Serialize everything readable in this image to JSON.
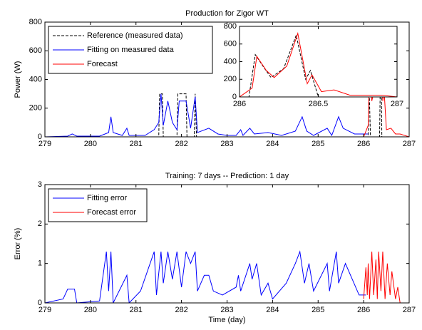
{
  "chart_data": [
    {
      "type": "line",
      "title": "Production for Zigor WT",
      "ylabel": "Power (W)",
      "xlim": [
        279,
        287
      ],
      "xticks": [
        279,
        280,
        281,
        282,
        283,
        284,
        285,
        286,
        287
      ],
      "ylim": [
        0,
        800
      ],
      "yticks": [
        0,
        200,
        400,
        600,
        800
      ],
      "legend": "upper left",
      "series": [
        {
          "name": "Reference (measured data)",
          "color": "#000000",
          "linestyle": "--",
          "x": [
            279,
            281.5,
            281.52,
            281.58,
            281.6,
            281.9,
            281.92,
            282.1,
            282.12,
            282.28,
            282.3,
            282.33,
            286.1,
            286.12,
            286.15,
            286.35,
            286.38,
            286.4,
            287
          ],
          "values": [
            0,
            0,
            300,
            300,
            0,
            0,
            300,
            300,
            0,
            0,
            300,
            0,
            0,
            350,
            0,
            0,
            700,
            0,
            0
          ]
        },
        {
          "name": "Fitting on measured data",
          "color": "#0000ff",
          "linestyle": "-",
          "x": [
            279,
            279.5,
            279.6,
            279.7,
            280.2,
            280.4,
            280.45,
            280.5,
            280.7,
            280.8,
            280.85,
            281.2,
            281.4,
            281.5,
            281.55,
            281.6,
            281.7,
            281.8,
            281.9,
            281.95,
            282.1,
            282.2,
            282.3,
            282.35,
            282.6,
            282.8,
            283.0,
            283.2,
            283.3,
            283.35,
            283.5,
            283.6,
            283.9,
            284.2,
            284.5,
            284.65,
            284.75,
            284.9,
            285.2,
            285.3,
            285.45,
            285.55,
            285.8,
            286.1
          ],
          "values": [
            0,
            5,
            20,
            5,
            5,
            30,
            140,
            30,
            10,
            60,
            10,
            10,
            50,
            100,
            300,
            80,
            250,
            100,
            50,
            250,
            250,
            60,
            280,
            30,
            60,
            20,
            10,
            10,
            50,
            10,
            60,
            20,
            30,
            10,
            40,
            140,
            40,
            10,
            60,
            10,
            140,
            60,
            20,
            20
          ]
        },
        {
          "name": "Forecast",
          "color": "#ff0000",
          "linestyle": "-",
          "x": [
            286,
            286.1,
            286.13,
            286.18,
            286.25,
            286.35,
            286.42,
            286.45,
            286.5,
            286.6,
            286.7,
            286.8,
            287
          ],
          "values": [
            0,
            80,
            480,
            250,
            350,
            720,
            250,
            320,
            50,
            60,
            20,
            20,
            0
          ]
        }
      ]
    },
    {
      "type": "line",
      "xlim": [
        286,
        287
      ],
      "xticks": [
        286,
        286.5,
        287
      ],
      "ylim": [
        0,
        800
      ],
      "yticks": [
        0,
        200,
        400,
        600,
        800
      ],
      "series": [
        {
          "color": "#000000",
          "linestyle": "--",
          "x": [
            286,
            286.06,
            286.1,
            286.16,
            286.2,
            286.28,
            286.36,
            286.42,
            286.45,
            286.5,
            287
          ],
          "values": [
            0,
            0,
            480,
            320,
            220,
            320,
            700,
            200,
            300,
            0,
            0
          ]
        },
        {
          "color": "#ff0000",
          "linestyle": "-",
          "x": [
            286,
            286.08,
            286.11,
            286.17,
            286.22,
            286.3,
            286.37,
            286.43,
            286.46,
            286.52,
            286.6,
            286.7,
            286.9,
            287
          ],
          "values": [
            0,
            100,
            460,
            300,
            220,
            350,
            720,
            150,
            250,
            60,
            80,
            20,
            20,
            0
          ]
        }
      ]
    },
    {
      "type": "line",
      "title": "Training: 7 days -- Prediction: 1 day",
      "xlabel": "Time (day)",
      "ylabel": "Error (%)",
      "xlim": [
        279,
        287
      ],
      "xticks": [
        279,
        280,
        281,
        282,
        283,
        284,
        285,
        286,
        287
      ],
      "ylim": [
        0,
        3
      ],
      "yticks": [
        0,
        1,
        2,
        3
      ],
      "legend": "upper left",
      "series": [
        {
          "name": "Fitting error",
          "color": "#0000ff",
          "linestyle": "-",
          "x": [
            279,
            279.4,
            279.5,
            279.65,
            279.7,
            280.2,
            280.35,
            280.4,
            280.45,
            280.5,
            280.8,
            280.85,
            281.1,
            281.4,
            281.45,
            281.55,
            281.6,
            281.7,
            281.8,
            281.9,
            282.0,
            282.1,
            282.2,
            282.3,
            282.35,
            282.5,
            282.6,
            282.7,
            282.9,
            283.2,
            283.25,
            283.3,
            283.5,
            283.55,
            283.65,
            283.75,
            283.9,
            284.0,
            284.3,
            284.5,
            284.6,
            284.7,
            284.8,
            284.9,
            285.2,
            285.25,
            285.4,
            285.45,
            285.6,
            285.9,
            286.05
          ],
          "values": [
            0,
            0.1,
            0.35,
            0.35,
            0,
            0.05,
            1.3,
            0.3,
            1.3,
            0,
            0.7,
            0,
            0.3,
            1.3,
            0.2,
            1.3,
            0.5,
            1.3,
            0.6,
            1.3,
            0.4,
            1.3,
            1.0,
            1.3,
            0.3,
            0.7,
            0.7,
            0.3,
            0.2,
            0.4,
            0.7,
            0.3,
            1.0,
            0.6,
            1.0,
            0.2,
            0.5,
            0.1,
            0.5,
            1.0,
            1.3,
            0.5,
            1.0,
            0.3,
            1.0,
            0.3,
            1.3,
            0.5,
            1.0,
            0.2,
            0.2
          ]
        },
        {
          "name": "Forecast error",
          "color": "#ff0000",
          "linestyle": "-",
          "x": [
            286,
            286.05,
            286.08,
            286.1,
            286.13,
            286.18,
            286.22,
            286.27,
            286.3,
            286.33,
            286.38,
            286.42,
            286.47,
            286.52,
            286.58,
            286.62,
            286.7,
            286.75,
            286.8,
            287
          ],
          "values": [
            0.1,
            0.9,
            0.2,
            1.0,
            0.1,
            1.3,
            0.2,
            1.1,
            0.1,
            1.3,
            0.3,
            1.3,
            0.1,
            1.0,
            0.2,
            0.8,
            0.1,
            0.4,
            0,
            0
          ]
        }
      ]
    }
  ]
}
